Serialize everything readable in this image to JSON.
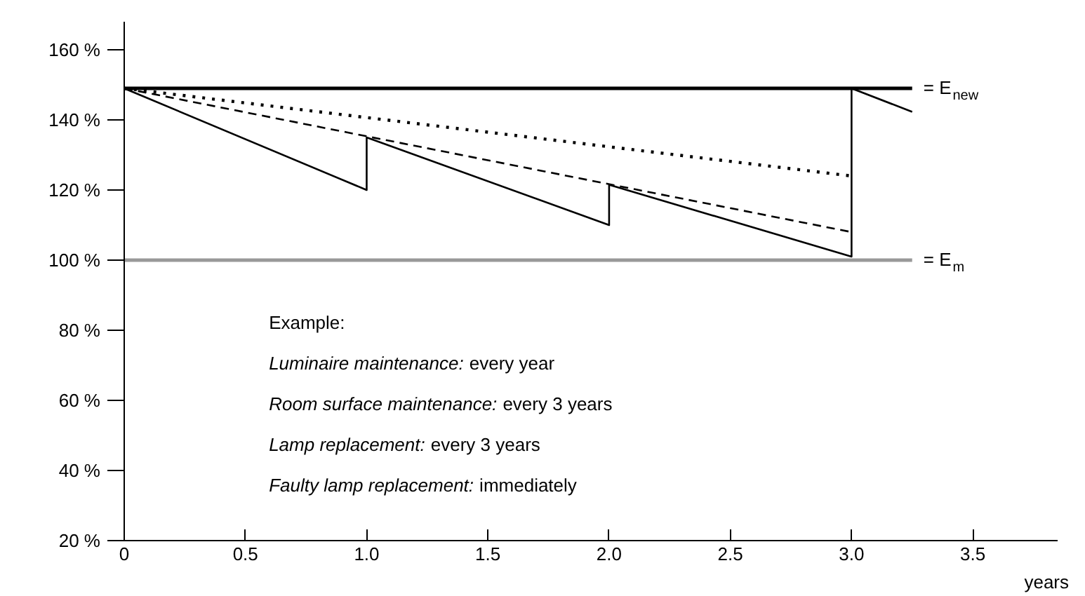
{
  "chart_data": {
    "type": "line",
    "xlabel": "years",
    "xlim": [
      0,
      3.85
    ],
    "xticks": [
      {
        "value": 0,
        "label": "0"
      },
      {
        "value": 0.5,
        "label": "0.5"
      },
      {
        "value": 1,
        "label": "1.0"
      },
      {
        "value": 1.5,
        "label": "1.5"
      },
      {
        "value": 2,
        "label": "2.0"
      },
      {
        "value": 2.5,
        "label": "2.5"
      },
      {
        "value": 3,
        "label": "3.0"
      },
      {
        "value": 3.5,
        "label": "3.5"
      }
    ],
    "ylim": [
      20,
      168
    ],
    "yticks": [
      {
        "value": 20,
        "label": "20 %"
      },
      {
        "value": 40,
        "label": "40 %"
      },
      {
        "value": 60,
        "label": "60 %"
      },
      {
        "value": 80,
        "label": "80 %"
      },
      {
        "value": 100,
        "label": "100 %"
      },
      {
        "value": 120,
        "label": "120 %"
      },
      {
        "value": 140,
        "label": "140 %"
      },
      {
        "value": 160,
        "label": "160 %"
      }
    ],
    "grid": false,
    "marker": "none",
    "series": [
      {
        "name": "= E$_{new}$",
        "color": "#000000",
        "line_style": "solid",
        "x": [
          0,
          3.25
        ],
        "values": [
          149,
          149
        ]
      },
      {
        "name": "= E$_{m}$",
        "color": "#999999",
        "line_style": "solid",
        "x": [
          0,
          3.25
        ],
        "values": [
          100,
          100
        ]
      },
      {
        "color": "#000000",
        "line_style": "dotted",
        "x": [
          0,
          3
        ],
        "values": [
          149,
          124
        ]
      },
      {
        "color": "#000000",
        "line_style": "dashed",
        "x": [
          0,
          3
        ],
        "values": [
          149,
          108
        ]
      },
      {
        "color": "#000000",
        "line_style": "solid",
        "x": [
          0,
          1,
          1,
          2,
          2,
          3,
          3,
          3.25
        ],
        "values": [
          149,
          120,
          135,
          110,
          121.5,
          101,
          149,
          142.3
        ]
      }
    ],
    "annotations": [
      "Example:",
      "Luminaire maintenance: every year",
      "Room surface maintenance: every 3 years",
      "Lamp replacement: every 3 years",
      "Faulty lamp replacement: immediately"
    ]
  }
}
